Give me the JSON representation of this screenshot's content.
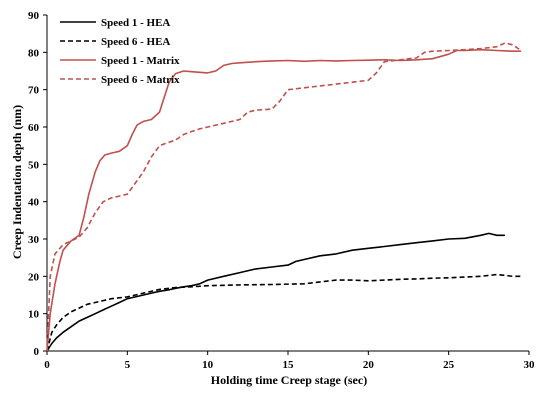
{
  "chart_data": {
    "type": "line",
    "title": "",
    "xlabel": "Holding time Creep stage (sec)",
    "ylabel": "Creep Indentation depth (nm)",
    "xlim": [
      0,
      30
    ],
    "ylim": [
      0,
      90
    ],
    "xticks": [
      0,
      5,
      10,
      15,
      20,
      25,
      30
    ],
    "yticks": [
      0,
      10,
      20,
      30,
      40,
      50,
      60,
      70,
      80,
      90
    ],
    "grid": false,
    "legend_position": "top-left",
    "series": [
      {
        "name": "Speed 1 - HEA",
        "color": "#000000",
        "dash": "solid",
        "points": [
          [
            0,
            0
          ],
          [
            0.3,
            2
          ],
          [
            0.6,
            3.5
          ],
          [
            1,
            5
          ],
          [
            1.5,
            6.5
          ],
          [
            2,
            8
          ],
          [
            2.5,
            9
          ],
          [
            3,
            10
          ],
          [
            3.5,
            11
          ],
          [
            4,
            12
          ],
          [
            4.5,
            13
          ],
          [
            5,
            14
          ],
          [
            5.5,
            14.5
          ],
          [
            6,
            15
          ],
          [
            6.5,
            15.5
          ],
          [
            7,
            16
          ],
          [
            7.5,
            16.3
          ],
          [
            8,
            16.8
          ],
          [
            8.5,
            17.2
          ],
          [
            9,
            17.5
          ],
          [
            9.5,
            18
          ],
          [
            10,
            19
          ],
          [
            11,
            20
          ],
          [
            12,
            21
          ],
          [
            13,
            22
          ],
          [
            14,
            22.5
          ],
          [
            15,
            23
          ],
          [
            15.5,
            24
          ],
          [
            16,
            24.5
          ],
          [
            17,
            25.5
          ],
          [
            18,
            26
          ],
          [
            19,
            27
          ],
          [
            20,
            27.5
          ],
          [
            21,
            28
          ],
          [
            22,
            28.5
          ],
          [
            23,
            29
          ],
          [
            24,
            29.5
          ],
          [
            25,
            30
          ],
          [
            26,
            30.2
          ],
          [
            27,
            31
          ],
          [
            27.5,
            31.5
          ],
          [
            28,
            31
          ],
          [
            28.5,
            31
          ]
        ]
      },
      {
        "name": "Speed 6 - HEA",
        "color": "#000000",
        "dash": "dashed",
        "points": [
          [
            0,
            0
          ],
          [
            0.3,
            5
          ],
          [
            0.6,
            7
          ],
          [
            1,
            9
          ],
          [
            1.5,
            10.5
          ],
          [
            2,
            11.5
          ],
          [
            2.5,
            12.5
          ],
          [
            3,
            13
          ],
          [
            3.5,
            13.5
          ],
          [
            4,
            14
          ],
          [
            5,
            14.5
          ],
          [
            6,
            15.5
          ],
          [
            7,
            16.5
          ],
          [
            8,
            17
          ],
          [
            9,
            17.2
          ],
          [
            10,
            17.5
          ],
          [
            12,
            17.7
          ],
          [
            14,
            17.8
          ],
          [
            16,
            18
          ],
          [
            17,
            18.5
          ],
          [
            18,
            19
          ],
          [
            19,
            19
          ],
          [
            20,
            18.8
          ],
          [
            21,
            19
          ],
          [
            22,
            19.2
          ],
          [
            23,
            19.3
          ],
          [
            24,
            19.5
          ],
          [
            25,
            19.6
          ],
          [
            26,
            19.8
          ],
          [
            27,
            20
          ],
          [
            28,
            20.5
          ],
          [
            29,
            20
          ],
          [
            29.5,
            20
          ]
        ]
      },
      {
        "name": "Speed 1 - Matrix",
        "color": "#c0504d",
        "dash": "solid",
        "points": [
          [
            0,
            0
          ],
          [
            0.2,
            10
          ],
          [
            0.5,
            18
          ],
          [
            0.8,
            24
          ],
          [
            1,
            27
          ],
          [
            1.5,
            29.5
          ],
          [
            2,
            31
          ],
          [
            2.3,
            36
          ],
          [
            2.6,
            42
          ],
          [
            3,
            48
          ],
          [
            3.3,
            51
          ],
          [
            3.6,
            52.5
          ],
          [
            4,
            53
          ],
          [
            4.5,
            53.5
          ],
          [
            5,
            55
          ],
          [
            5.3,
            58
          ],
          [
            5.6,
            60.5
          ],
          [
            6,
            61.5
          ],
          [
            6.5,
            62
          ],
          [
            7,
            64
          ],
          [
            7.3,
            68
          ],
          [
            7.6,
            72
          ],
          [
            8,
            74.3
          ],
          [
            8.5,
            75
          ],
          [
            9,
            74.8
          ],
          [
            10,
            74.5
          ],
          [
            10.5,
            75
          ],
          [
            11,
            76.5
          ],
          [
            11.5,
            77
          ],
          [
            12,
            77.2
          ],
          [
            13,
            77.5
          ],
          [
            14,
            77.7
          ],
          [
            15,
            77.8
          ],
          [
            16,
            77.6
          ],
          [
            17,
            77.8
          ],
          [
            18,
            77.7
          ],
          [
            19,
            77.8
          ],
          [
            20,
            77.9
          ],
          [
            21,
            78
          ],
          [
            22,
            77.8
          ],
          [
            23,
            78
          ],
          [
            24,
            78.3
          ],
          [
            25,
            79.5
          ],
          [
            25.5,
            80.5
          ],
          [
            26,
            80.5
          ],
          [
            27,
            80.7
          ],
          [
            28,
            80.5
          ],
          [
            29,
            80.3
          ],
          [
            29.5,
            80.3
          ]
        ]
      },
      {
        "name": "Speed 6 - Matrix",
        "color": "#c0504d",
        "dash": "dashed",
        "points": [
          [
            0,
            0
          ],
          [
            0.2,
            20
          ],
          [
            0.5,
            26
          ],
          [
            1,
            28.5
          ],
          [
            1.5,
            29.5
          ],
          [
            2,
            30.5
          ],
          [
            2.5,
            33
          ],
          [
            3,
            37
          ],
          [
            3.5,
            40
          ],
          [
            4,
            41
          ],
          [
            4.5,
            41.5
          ],
          [
            5,
            42
          ],
          [
            5.5,
            45
          ],
          [
            6,
            48
          ],
          [
            6.5,
            52
          ],
          [
            7,
            55
          ],
          [
            7.5,
            55.8
          ],
          [
            8,
            56.5
          ],
          [
            8.5,
            58
          ],
          [
            9,
            58.8
          ],
          [
            9.5,
            59.5
          ],
          [
            10,
            60
          ],
          [
            11,
            61
          ],
          [
            12,
            62
          ],
          [
            12.5,
            64
          ],
          [
            13,
            64.5
          ],
          [
            14,
            64.8
          ],
          [
            14.5,
            67
          ],
          [
            15,
            70
          ],
          [
            16,
            70.5
          ],
          [
            17,
            71
          ],
          [
            18,
            71.5
          ],
          [
            19,
            72
          ],
          [
            20,
            72.5
          ],
          [
            20.5,
            74.5
          ],
          [
            21,
            77.5
          ],
          [
            22,
            78
          ],
          [
            23,
            78.5
          ],
          [
            23.5,
            80
          ],
          [
            24,
            80.3
          ],
          [
            25,
            80.5
          ],
          [
            26,
            80.7
          ],
          [
            27,
            81
          ],
          [
            28,
            81.5
          ],
          [
            28.5,
            82.5
          ],
          [
            29,
            82
          ],
          [
            29.5,
            80.5
          ]
        ]
      }
    ]
  }
}
